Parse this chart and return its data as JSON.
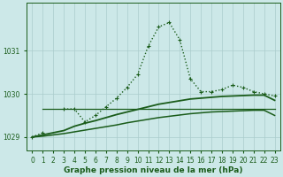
{
  "x": [
    0,
    1,
    2,
    3,
    4,
    5,
    6,
    7,
    8,
    9,
    10,
    11,
    12,
    13,
    14,
    15,
    16,
    17,
    18,
    19,
    20,
    21,
    22,
    23
  ],
  "line_dotted": [
    1029.0,
    1029.1,
    null,
    1029.65,
    1029.65,
    1029.35,
    1029.5,
    1029.7,
    1029.9,
    1030.15,
    1030.45,
    1031.1,
    1031.55,
    1031.65,
    1031.25,
    1030.35,
    1030.05,
    1030.05,
    1030.1,
    1030.2,
    1030.15,
    1030.05,
    1030.0,
    1029.95
  ],
  "line_solid_main": [
    1029.0,
    1029.05,
    1029.1,
    1029.15,
    1029.25,
    1029.32,
    1029.38,
    1029.45,
    1029.52,
    1029.58,
    1029.64,
    1029.7,
    1029.76,
    1029.8,
    1029.84,
    1029.88,
    1029.9,
    1029.92,
    1029.94,
    1029.95,
    1029.96,
    1029.97,
    1029.97,
    1029.85
  ],
  "line_solid_lower": [
    1029.0,
    1029.02,
    1029.05,
    1029.08,
    1029.12,
    1029.16,
    1029.2,
    1029.24,
    1029.28,
    1029.33,
    1029.37,
    1029.41,
    1029.45,
    1029.48,
    1029.51,
    1029.54,
    1029.56,
    1029.58,
    1029.59,
    1029.6,
    1029.61,
    1029.62,
    1029.62,
    1029.5
  ],
  "line_horiz": [
    1029.0,
    1029.65,
    1029.65,
    1029.65,
    1029.65,
    1029.65,
    1029.65,
    1029.65,
    1029.65,
    1029.65,
    1029.65,
    1029.65,
    1029.65,
    1029.65,
    1029.65,
    1029.65,
    1029.65,
    1029.65,
    1029.65,
    1029.65,
    1029.65,
    1029.65,
    1029.65,
    1029.65
  ],
  "ylim": [
    1028.7,
    1032.1
  ],
  "yticks": [
    1029,
    1030,
    1031
  ],
  "xticks": [
    0,
    1,
    2,
    3,
    4,
    5,
    6,
    7,
    8,
    9,
    10,
    11,
    12,
    13,
    14,
    15,
    16,
    17,
    18,
    19,
    20,
    21,
    22,
    23
  ],
  "xlabel": "Graphe pression niveau de la mer (hPa)",
  "bg_color": "#cce8e8",
  "grid_color": "#aacccc",
  "line_color": "#1a5c1a",
  "linewidth_dotted": 1.0,
  "linewidth_smooth": 1.3,
  "tick_fontsize": 5.5,
  "xlabel_fontsize": 6.5
}
